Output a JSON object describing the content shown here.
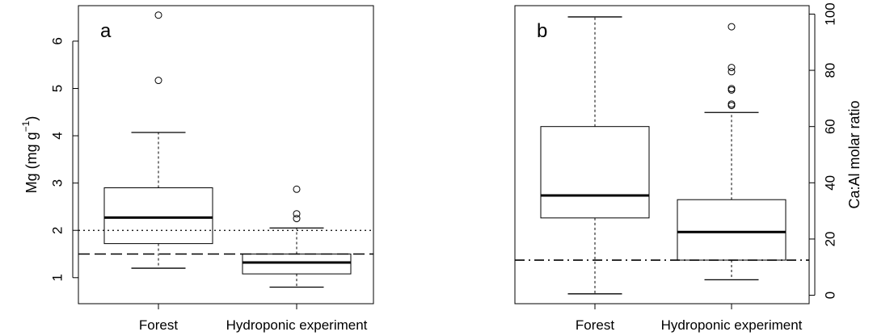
{
  "chart_data": [
    {
      "type": "boxplot",
      "panel_label": "a",
      "ylabel": "Mg (mg g",
      "ylabel_sup": "−1",
      "ylabel_close": ")",
      "y_axis_side": "left",
      "ylim": [
        0.45,
        6.75
      ],
      "yticks": [
        1,
        2,
        3,
        4,
        5,
        6
      ],
      "ytick_labels": [
        "1",
        "2",
        "3",
        "4",
        "5",
        "6"
      ],
      "categories": [
        "Forest",
        "Hydroponic experiment"
      ],
      "boxes": [
        {
          "category": "Forest",
          "whisker_low": 1.2,
          "q1": 1.72,
          "median": 2.27,
          "q3": 2.9,
          "whisker_high": 4.07,
          "outliers": [
            5.17,
            6.55
          ]
        },
        {
          "category": "Hydroponic experiment",
          "whisker_low": 0.8,
          "q1": 1.08,
          "median": 1.32,
          "q3": 1.5,
          "whisker_high": 2.05,
          "outliers": [
            2.25,
            2.35,
            2.87
          ]
        }
      ],
      "reference_lines": [
        {
          "y": 2.0,
          "style": "dotted"
        },
        {
          "y": 1.5,
          "style": "dashed"
        }
      ],
      "grid": false,
      "legend": "none"
    },
    {
      "type": "boxplot",
      "panel_label": "b",
      "ylabel": "Ca:Al molar ratio",
      "y_axis_side": "right",
      "ylim": [
        -3,
        103
      ],
      "yticks": [
        0,
        20,
        40,
        60,
        80,
        100
      ],
      "ytick_labels": [
        "0",
        "20",
        "40",
        "60",
        "80",
        "100"
      ],
      "categories": [
        "Forest",
        "Hydroponic experiment"
      ],
      "boxes": [
        {
          "category": "Forest",
          "whisker_low": 0.5,
          "q1": 27.5,
          "median": 35.5,
          "q3": 60,
          "whisker_high": 99,
          "outliers": []
        },
        {
          "category": "Hydroponic experiment",
          "whisker_low": 5.5,
          "q1": 12.5,
          "median": 22.5,
          "q3": 34,
          "whisker_high": 65,
          "outliers": [
            67.5,
            68,
            73,
            73.5,
            79.5,
            81,
            95.5
          ]
        }
      ],
      "reference_lines": [
        {
          "y": 12.5,
          "style": "dashdot"
        }
      ],
      "grid": false,
      "legend": "none"
    }
  ]
}
